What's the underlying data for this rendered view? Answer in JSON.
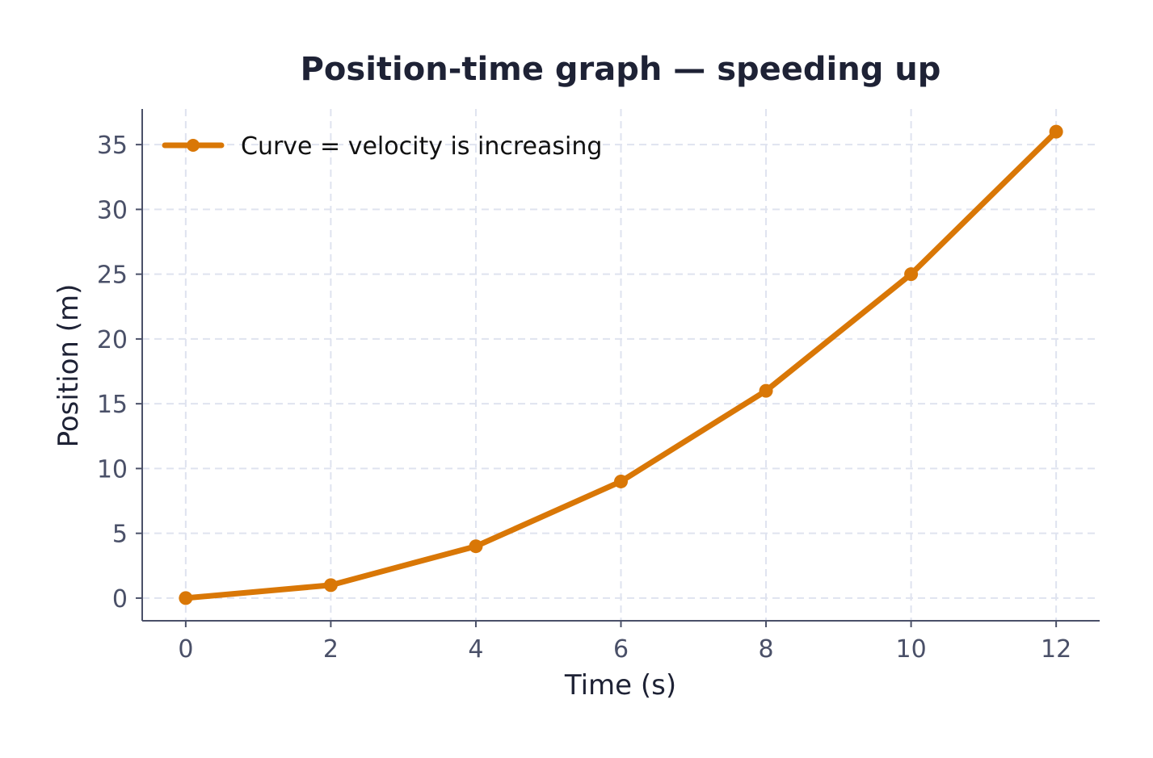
{
  "chart_data": {
    "type": "line",
    "title": "Position-time graph — speeding up",
    "xlabel": "Time (s)",
    "ylabel": "Position (m)",
    "xlim": [
      -0.6,
      12.6
    ],
    "ylim": [
      -1.75,
      37.75
    ],
    "x_ticks": [
      0,
      2,
      4,
      6,
      8,
      10,
      12
    ],
    "y_ticks": [
      0,
      5,
      10,
      15,
      20,
      25,
      30,
      35
    ],
    "grid": true,
    "legend_position": "top-left",
    "series": [
      {
        "name": "Curve = velocity is increasing",
        "color": "#d97706",
        "x": [
          0,
          2,
          4,
          6,
          8,
          10,
          12
        ],
        "y": [
          0,
          1,
          4,
          9,
          16,
          25,
          36
        ]
      }
    ]
  },
  "colors": {
    "title": "#1e2235",
    "axis_label": "#1e2235",
    "tick_label": "#4a5068",
    "axis_line": "#4a5068",
    "grid": "#dfe3ef"
  }
}
